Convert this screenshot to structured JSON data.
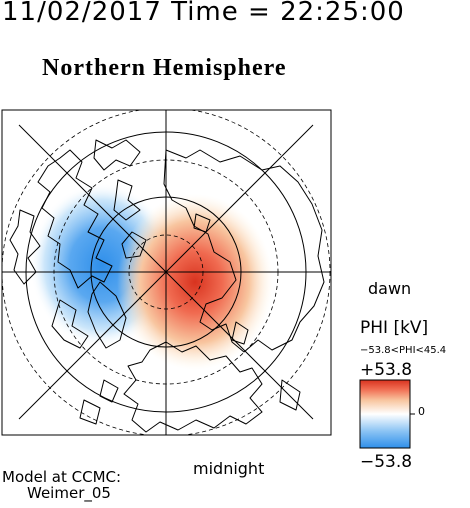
{
  "header": {
    "date_time": "11/02/2017 Time = 22:25:00"
  },
  "title": "Northern Hemisphere",
  "labels": {
    "dawn": "dawn",
    "midnight": "midnight"
  },
  "model": {
    "line1": "Model at CCMC:",
    "line2": "Weimer_05"
  },
  "colorbar": {
    "title": "PHI [kV]",
    "range_text": "−53.8<PHI<45.4",
    "max_label": "+53.8",
    "min_label": "−53.8",
    "zero_label": "0",
    "colors": [
      "#2f8fea",
      "#8cc4f4",
      "#ffffff",
      "#f8c6a0",
      "#f06a50",
      "#d8331f"
    ]
  },
  "potential": {
    "min_kv": -53.8,
    "max_kv": 45.4
  }
}
